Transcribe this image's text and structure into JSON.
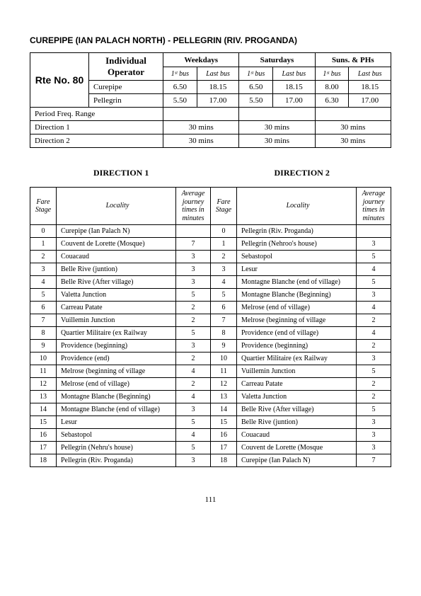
{
  "title": "CUREPIPE (IAN PALACH NORTH) - PELLEGRIN (RIV. PROGANDA)",
  "route_no_label": "Rte No. 80",
  "ind_op_label": "Individual Operator",
  "day_headers": {
    "weekdays": "Weekdays",
    "saturdays": "Saturdays",
    "suns": "Suns. & PHs"
  },
  "sub_headers": {
    "first": "1ˢᵗ bus",
    "last": "Last bus"
  },
  "origin_rows": [
    {
      "name": "Curepipe",
      "wk_first": "6.50",
      "wk_last": "18.15",
      "sa_first": "6.50",
      "sa_last": "18.15",
      "su_first": "8.00",
      "su_last": "18.15"
    },
    {
      "name": "Pellegrin",
      "wk_first": "5.50",
      "wk_last": "17.00",
      "sa_first": "5.50",
      "sa_last": "17.00",
      "su_first": "6.30",
      "su_last": "17.00"
    }
  ],
  "period_freq_label": "Period Freq. Range",
  "dir_rows": [
    {
      "label": "Direction 1",
      "wk": "30 mins",
      "sa": "30 mins",
      "su": "30 mins"
    },
    {
      "label": "Direction 2",
      "wk": "30 mins",
      "sa": "30 mins",
      "su": "30 mins"
    }
  ],
  "dir1_title": "DIRECTION  1",
  "dir2_title": "DIRECTION  2",
  "fare_headers": {
    "stage": "Fare Stage",
    "locality": "Locality",
    "avg": "Average journey times in minutes"
  },
  "fares": [
    {
      "s1": "0",
      "l1": "Curepipe (Ian Palach N)",
      "a1": "",
      "s2": "0",
      "l2": "Pellegrin (Riv. Proganda)",
      "a2": ""
    },
    {
      "s1": "1",
      "l1": "Couvent de Lorette (Mosque)",
      "a1": "7",
      "s2": "1",
      "l2": "Pellegrin (Nehroo's house)",
      "a2": "3"
    },
    {
      "s1": "2",
      "l1": "Couacaud",
      "a1": "3",
      "s2": "2",
      "l2": "Sebastopol",
      "a2": "5"
    },
    {
      "s1": "3",
      "l1": "Belle Rive (juntion)",
      "a1": "3",
      "s2": "3",
      "l2": "Lesur",
      "a2": "4"
    },
    {
      "s1": "4",
      "l1": "Belle Rive (After village)",
      "a1": "3",
      "s2": "4",
      "l2": "Montagne Blanche (end of village)",
      "a2": "5"
    },
    {
      "s1": "5",
      "l1": "Valetta Junction",
      "a1": "5",
      "s2": "5",
      "l2": "Montagne Blanche (Beginning)",
      "a2": "3"
    },
    {
      "s1": "6",
      "l1": "Carreau Patate",
      "a1": "2",
      "s2": "6",
      "l2": "Melrose (end of village)",
      "a2": "4"
    },
    {
      "s1": "7",
      "l1": "Vuillemin Junction",
      "a1": "2",
      "s2": "7",
      "l2": "Melrose (beginning of  village",
      "a2": "2"
    },
    {
      "s1": "8",
      "l1": "Quartier Militaire (ex Railway",
      "a1": "5",
      "s2": "8",
      "l2": "Providence (end of village)",
      "a2": "4"
    },
    {
      "s1": "9",
      "l1": "Providence (beginning)",
      "a1": "3",
      "s2": "9",
      "l2": "Providence (beginning)",
      "a2": "2"
    },
    {
      "s1": "10",
      "l1": "Providence (end)",
      "a1": "2",
      "s2": "10",
      "l2": "Quartier Militaire (ex Railway",
      "a2": "3"
    },
    {
      "s1": "11",
      "l1": "Melrose (beginning of  village",
      "a1": "4",
      "s2": "11",
      "l2": "Vuillemin Junction",
      "a2": "5"
    },
    {
      "s1": "12",
      "l1": "Melrose (end of village)",
      "a1": "2",
      "s2": "12",
      "l2": "Carreau Patate",
      "a2": "2"
    },
    {
      "s1": "13",
      "l1": "Montagne Blanche (Beginning)",
      "a1": "4",
      "s2": "13",
      "l2": "Valetta Junction",
      "a2": "2"
    },
    {
      "s1": "14",
      "l1": "Montagne Blanche (end of village)",
      "a1": "3",
      "s2": "14",
      "l2": "Belle Rive (After village)",
      "a2": "5"
    },
    {
      "s1": "15",
      "l1": "Lesur",
      "a1": "5",
      "s2": "15",
      "l2": "Belle Rive (juntion)",
      "a2": "3"
    },
    {
      "s1": "16",
      "l1": "Sebastopol",
      "a1": "4",
      "s2": "16",
      "l2": "Couacaud",
      "a2": "3"
    },
    {
      "s1": "17",
      "l1": "Pellegrin (Nehru's house)",
      "a1": "5",
      "s2": "17",
      "l2": "Couvent de Lorette (Mosque",
      "a2": "3"
    },
    {
      "s1": "18",
      "l1": "Pellegrin (Riv. Proganda)",
      "a1": "3",
      "s2": "18",
      "l2": "Curepipe (Ian Palach N)",
      "a2": "7"
    }
  ],
  "page_number": "111"
}
